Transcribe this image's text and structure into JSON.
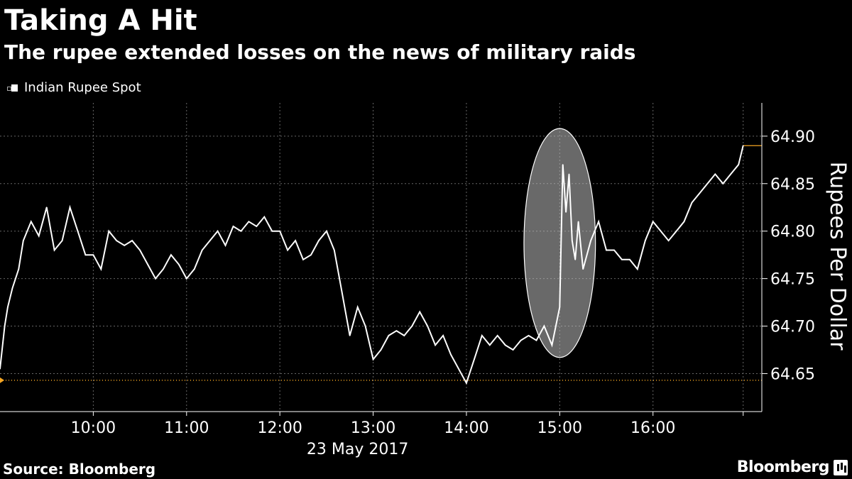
{
  "title": "Taking A Hit",
  "subtitle": "The rupee extended losses on the news of military raids",
  "legend": {
    "label": "Indian Rupee Spot"
  },
  "source": "Source: Bloomberg",
  "brand": "Bloomberg",
  "colors": {
    "background": "#000000",
    "line": "#ffffff",
    "grid": "#666666",
    "reference": "#f5a623",
    "highlight": "#c0c0c0"
  },
  "chart_data": {
    "type": "line",
    "xlabel": "23 May 2017",
    "ylabel": "Rupees Per Dollar",
    "x_ticks": [
      "10:00",
      "11:00",
      "12:00",
      "13:00",
      "14:00",
      "15:00",
      "16:00"
    ],
    "y_ticks": [
      "64.65",
      "64.70",
      "64.75",
      "64.80",
      "64.85",
      "64.90"
    ],
    "xlim": [
      "09:00",
      "17:10"
    ],
    "ylim": [
      64.61,
      64.935
    ],
    "grid": true,
    "legend_position": "top-left",
    "last_value": 64.89,
    "reference_value": 64.643,
    "highlight": {
      "shape": "ellipse",
      "from": "14:37",
      "to": "15:23",
      "range": [
        64.667,
        64.908
      ]
    },
    "series": [
      {
        "name": "Indian Rupee Spot",
        "x": [
          "09:00",
          "09:03",
          "09:05",
          "09:08",
          "09:12",
          "09:15",
          "09:20",
          "09:25",
          "09:30",
          "09:35",
          "09:40",
          "09:45",
          "09:50",
          "09:55",
          "10:00",
          "10:05",
          "10:10",
          "10:15",
          "10:20",
          "10:25",
          "10:30",
          "10:35",
          "10:40",
          "10:45",
          "10:50",
          "10:55",
          "11:00",
          "11:05",
          "11:10",
          "11:15",
          "11:20",
          "11:25",
          "11:30",
          "11:35",
          "11:40",
          "11:45",
          "11:50",
          "11:55",
          "12:00",
          "12:05",
          "12:10",
          "12:15",
          "12:20",
          "12:25",
          "12:30",
          "12:35",
          "12:40",
          "12:45",
          "12:50",
          "12:55",
          "13:00",
          "13:05",
          "13:10",
          "13:15",
          "13:20",
          "13:25",
          "13:30",
          "13:35",
          "13:40",
          "13:45",
          "13:50",
          "13:55",
          "14:00",
          "14:05",
          "14:10",
          "14:15",
          "14:20",
          "14:25",
          "14:30",
          "14:35",
          "14:40",
          "14:45",
          "14:50",
          "14:55",
          "15:00",
          "15:02",
          "15:04",
          "15:06",
          "15:08",
          "15:10",
          "15:12",
          "15:15",
          "15:20",
          "15:25",
          "15:30",
          "15:35",
          "15:40",
          "15:45",
          "15:50",
          "15:55",
          "16:00",
          "16:05",
          "16:10",
          "16:15",
          "16:20",
          "16:25",
          "16:30",
          "16:35",
          "16:40",
          "16:45",
          "16:50",
          "16:55",
          "16:58"
        ],
        "values": [
          64.655,
          64.7,
          64.72,
          64.74,
          64.76,
          64.79,
          64.81,
          64.795,
          64.825,
          64.78,
          64.79,
          64.825,
          64.8,
          64.775,
          64.775,
          64.76,
          64.8,
          64.79,
          64.785,
          64.79,
          64.78,
          64.765,
          64.75,
          64.76,
          64.775,
          64.765,
          64.75,
          64.76,
          64.78,
          64.79,
          64.8,
          64.785,
          64.805,
          64.8,
          64.81,
          64.805,
          64.815,
          64.8,
          64.8,
          64.78,
          64.79,
          64.77,
          64.775,
          64.79,
          64.8,
          64.78,
          64.735,
          64.69,
          64.72,
          64.7,
          64.665,
          64.675,
          64.69,
          64.695,
          64.69,
          64.7,
          64.715,
          64.7,
          64.68,
          64.69,
          64.67,
          64.655,
          64.64,
          64.665,
          64.69,
          64.68,
          64.69,
          64.68,
          64.675,
          64.685,
          64.69,
          64.685,
          64.7,
          64.68,
          64.72,
          64.87,
          64.82,
          64.86,
          64.79,
          64.77,
          64.81,
          64.76,
          64.79,
          64.81,
          64.78,
          64.78,
          64.77,
          64.77,
          64.76,
          64.79,
          64.81,
          64.8,
          64.79,
          64.8,
          64.81,
          64.83,
          64.84,
          64.85,
          64.86,
          64.85,
          64.86,
          64.87,
          64.89
        ]
      }
    ]
  }
}
